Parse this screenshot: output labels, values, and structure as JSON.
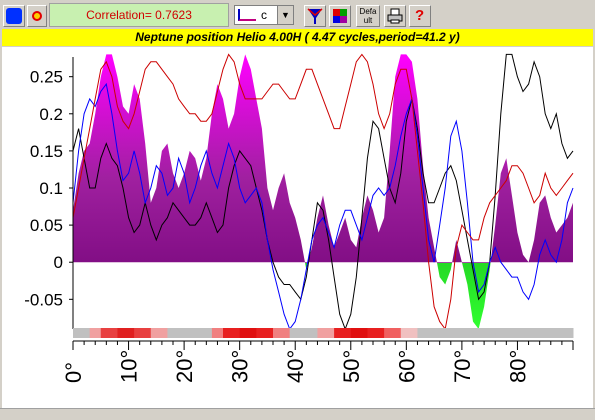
{
  "toolbar": {
    "correlation": "Correlation= 0.7623",
    "combo_value": "c",
    "default_button": "Defa ult"
  },
  "chart_data": {
    "type": "area",
    "title": "Neptune position Helio  4.00H  ( 4.47 cycles,period=41.2 y)",
    "xlim": [
      0,
      90
    ],
    "ylim": [
      -0.09,
      0.29
    ],
    "y_ticks": [
      "0.25",
      "0.2",
      "0.15",
      "0.1",
      "0.05",
      "0",
      "-0.05"
    ],
    "y_tick_values": [
      0.25,
      0.2,
      0.15,
      0.1,
      0.05,
      0,
      -0.05
    ],
    "x_ticks": [
      "0°",
      "10°",
      "20°",
      "30°",
      "40°",
      "50°",
      "60°",
      "70°",
      "80°"
    ],
    "x_tick_values": [
      0,
      10,
      20,
      30,
      40,
      50,
      60,
      70,
      80
    ],
    "area_series": {
      "x": [
        0,
        1,
        2,
        3,
        4,
        5,
        6,
        7,
        8,
        9,
        10,
        11,
        12,
        13,
        14,
        15,
        16,
        17,
        18,
        19,
        20,
        21,
        22,
        23,
        24,
        25,
        26,
        27,
        28,
        29,
        30,
        31,
        32,
        33,
        34,
        35,
        36,
        37,
        38,
        39,
        40,
        41,
        42,
        43,
        44,
        45,
        46,
        47,
        48,
        49,
        50,
        51,
        52,
        53,
        54,
        55,
        56,
        57,
        58,
        59,
        60,
        61,
        62,
        63,
        64,
        65,
        66,
        67,
        68,
        69,
        70,
        71,
        72,
        73,
        74,
        75,
        76,
        77,
        78,
        79,
        80,
        81,
        82,
        83,
        84,
        85,
        86,
        87,
        88,
        89,
        90
      ],
      "y": [
        0.07,
        0.12,
        0.15,
        0.16,
        0.2,
        0.25,
        0.28,
        0.28,
        0.25,
        0.21,
        0.2,
        0.24,
        0.22,
        0.16,
        0.08,
        0.1,
        0.15,
        0.16,
        0.12,
        0.1,
        0.12,
        0.15,
        0.14,
        0.11,
        0.14,
        0.2,
        0.24,
        0.22,
        0.18,
        0.2,
        0.25,
        0.28,
        0.26,
        0.22,
        0.18,
        0.1,
        0.07,
        0.1,
        0.12,
        0.08,
        0.06,
        0.03,
        -0.01,
        0.02,
        0.06,
        0.09,
        0.05,
        0.02,
        0.04,
        0.06,
        0.03,
        0.02,
        0.06,
        0.09,
        0.07,
        0.04,
        0.06,
        0.15,
        0.25,
        0.28,
        0.28,
        0.27,
        0.22,
        0.13,
        0.06,
        0.02,
        -0.02,
        -0.03,
        -0.01,
        0.03,
        0.0,
        -0.03,
        -0.08,
        -0.09,
        -0.06,
        -0.01,
        0.05,
        0.12,
        0.14,
        0.09,
        0.04,
        0.01,
        0.0,
        0.03,
        0.08,
        0.09,
        0.06,
        0.04,
        0.05,
        0.06,
        0.08
      ]
    },
    "lines": [
      {
        "color": "#000000",
        "x": [
          0,
          1,
          2,
          3,
          4,
          5,
          6,
          7,
          8,
          9,
          10,
          11,
          12,
          13,
          14,
          15,
          16,
          17,
          18,
          19,
          20,
          21,
          22,
          23,
          24,
          25,
          26,
          27,
          28,
          29,
          30,
          31,
          32,
          33,
          34,
          35,
          36,
          37,
          38,
          39,
          40,
          41,
          42,
          43,
          44,
          45,
          46,
          47,
          48,
          49,
          50,
          51,
          52,
          53,
          54,
          55,
          56,
          57,
          58,
          59,
          60,
          61,
          62,
          63,
          64,
          65,
          66,
          67,
          68,
          69,
          70,
          71,
          72,
          73,
          74,
          75,
          76,
          77,
          78,
          79,
          80,
          81,
          82,
          83,
          84,
          85,
          86,
          87,
          88,
          89,
          90
        ],
        "y": [
          0.15,
          0.18,
          0.14,
          0.1,
          0.1,
          0.14,
          0.16,
          0.14,
          0.13,
          0.1,
          0.06,
          0.04,
          0.05,
          0.08,
          0.05,
          0.03,
          0.05,
          0.06,
          0.08,
          0.07,
          0.06,
          0.05,
          0.05,
          0.06,
          0.08,
          0.06,
          0.04,
          0.05,
          0.1,
          0.13,
          0.15,
          0.14,
          0.13,
          0.1,
          0.07,
          0.03,
          0.0,
          -0.02,
          -0.03,
          -0.03,
          -0.04,
          -0.05,
          -0.02,
          0.03,
          0.08,
          0.07,
          0.03,
          -0.02,
          -0.07,
          -0.09,
          -0.07,
          -0.02,
          0.06,
          0.14,
          0.19,
          0.18,
          0.14,
          0.1,
          0.08,
          0.12,
          0.19,
          0.22,
          0.18,
          0.12,
          0.08,
          0.08,
          0.1,
          0.12,
          0.13,
          0.11,
          0.07,
          0.03,
          -0.01,
          -0.05,
          -0.04,
          0.0,
          0.09,
          0.2,
          0.28,
          0.28,
          0.25,
          0.23,
          0.24,
          0.27,
          0.25,
          0.2,
          0.18,
          0.2,
          0.16,
          0.14,
          0.15
        ]
      },
      {
        "color": "#0000ff",
        "x": [
          0,
          1,
          2,
          3,
          4,
          5,
          6,
          7,
          8,
          9,
          10,
          11,
          12,
          13,
          14,
          15,
          16,
          17,
          18,
          19,
          20,
          21,
          22,
          23,
          24,
          25,
          26,
          27,
          28,
          29,
          30,
          31,
          32,
          33,
          34,
          35,
          36,
          37,
          38,
          39,
          40,
          41,
          42,
          43,
          44,
          45,
          46,
          47,
          48,
          49,
          50,
          51,
          52,
          53,
          54,
          55,
          56,
          57,
          58,
          59,
          60,
          61,
          62,
          63,
          64,
          65,
          66,
          67,
          68,
          69,
          70,
          71,
          72,
          73,
          74,
          75,
          76,
          77,
          78,
          79,
          80,
          81,
          82,
          83,
          84,
          85,
          86,
          87,
          88,
          89,
          90
        ],
        "y": [
          0.08,
          0.15,
          0.2,
          0.22,
          0.21,
          0.23,
          0.24,
          0.2,
          0.15,
          0.11,
          0.12,
          0.15,
          0.12,
          0.08,
          0.1,
          0.13,
          0.12,
          0.09,
          0.1,
          0.14,
          0.12,
          0.08,
          0.1,
          0.13,
          0.15,
          0.12,
          0.1,
          0.13,
          0.16,
          0.14,
          0.1,
          0.08,
          0.09,
          0.1,
          0.08,
          0.03,
          -0.01,
          -0.04,
          -0.07,
          -0.09,
          -0.08,
          -0.05,
          -0.01,
          0.03,
          0.05,
          0.06,
          0.04,
          0.02,
          0.05,
          0.07,
          0.07,
          0.05,
          0.03,
          0.06,
          0.09,
          0.1,
          0.09,
          0.1,
          0.13,
          0.17,
          0.2,
          0.22,
          0.17,
          0.1,
          0.03,
          0.0,
          0.05,
          0.1,
          0.17,
          0.19,
          0.15,
          0.08,
          0.0,
          -0.04,
          -0.03,
          0.0,
          0.02,
          0.0,
          -0.01,
          -0.02,
          -0.02,
          -0.04,
          -0.05,
          -0.03,
          0.01,
          0.03,
          0.01,
          0.0,
          0.03,
          0.08,
          0.1
        ]
      },
      {
        "color": "#cc0000",
        "x": [
          0,
          1,
          2,
          3,
          4,
          5,
          6,
          7,
          8,
          9,
          10,
          11,
          12,
          13,
          14,
          15,
          16,
          17,
          18,
          19,
          20,
          21,
          22,
          23,
          24,
          25,
          26,
          27,
          28,
          29,
          30,
          31,
          32,
          33,
          34,
          35,
          36,
          37,
          38,
          39,
          40,
          41,
          42,
          43,
          44,
          45,
          46,
          47,
          48,
          49,
          50,
          51,
          52,
          53,
          54,
          55,
          56,
          57,
          58,
          59,
          60,
          61,
          62,
          63,
          64,
          65,
          66,
          67,
          68,
          69,
          70,
          71,
          72,
          73,
          74,
          75,
          76,
          77,
          78,
          79,
          80,
          81,
          82,
          83,
          84,
          85,
          86,
          87,
          88,
          89,
          90
        ],
        "y": [
          0.06,
          0.1,
          0.14,
          0.18,
          0.22,
          0.26,
          0.27,
          0.25,
          0.21,
          0.19,
          0.18,
          0.2,
          0.23,
          0.26,
          0.27,
          0.27,
          0.26,
          0.25,
          0.24,
          0.22,
          0.21,
          0.2,
          0.2,
          0.19,
          0.19,
          0.2,
          0.23,
          0.26,
          0.28,
          0.27,
          0.24,
          0.22,
          0.22,
          0.22,
          0.22,
          0.23,
          0.24,
          0.24,
          0.23,
          0.22,
          0.22,
          0.24,
          0.26,
          0.26,
          0.24,
          0.22,
          0.2,
          0.18,
          0.18,
          0.21,
          0.24,
          0.27,
          0.28,
          0.27,
          0.24,
          0.2,
          0.18,
          0.2,
          0.24,
          0.26,
          0.26,
          0.22,
          0.15,
          0.08,
          0.0,
          -0.06,
          -0.08,
          -0.09,
          -0.05,
          0.02,
          0.05,
          0.04,
          0.03,
          0.03,
          0.06,
          0.08,
          0.09,
          0.1,
          0.11,
          0.13,
          0.13,
          0.12,
          0.1,
          0.08,
          0.09,
          0.12,
          0.1,
          0.09,
          0.1,
          0.11,
          0.12
        ]
      }
    ],
    "strip": {
      "x": [
        0,
        3,
        5,
        8,
        11,
        14,
        17,
        20,
        23,
        25,
        27,
        30,
        33,
        36,
        39,
        42,
        44,
        47,
        50,
        53,
        56,
        59,
        62,
        65,
        68,
        71,
        74,
        77,
        80,
        83,
        86,
        89
      ],
      "color": [
        "#c0c0c0",
        "#f0a0a0",
        "#e84040",
        "#e02020",
        "#e84040",
        "#f0a0a0",
        "#c0c0c0",
        "#c0c0c0",
        "#c0c0c0",
        "#f08080",
        "#e82020",
        "#e01010",
        "#e82020",
        "#f08080",
        "#c0c0c0",
        "#c0c0c0",
        "#f0a0a0",
        "#e82020",
        "#e01010",
        "#e82020",
        "#f06060",
        "#f0c0c0",
        "#c0c0c0",
        "#c0c0c0",
        "#c0c0c0",
        "#c0c0c0",
        "#c0c0c0",
        "#c0c0c0",
        "#c0c0c0",
        "#c0c0c0",
        "#c0c0c0",
        "#c0c0c0"
      ]
    }
  }
}
